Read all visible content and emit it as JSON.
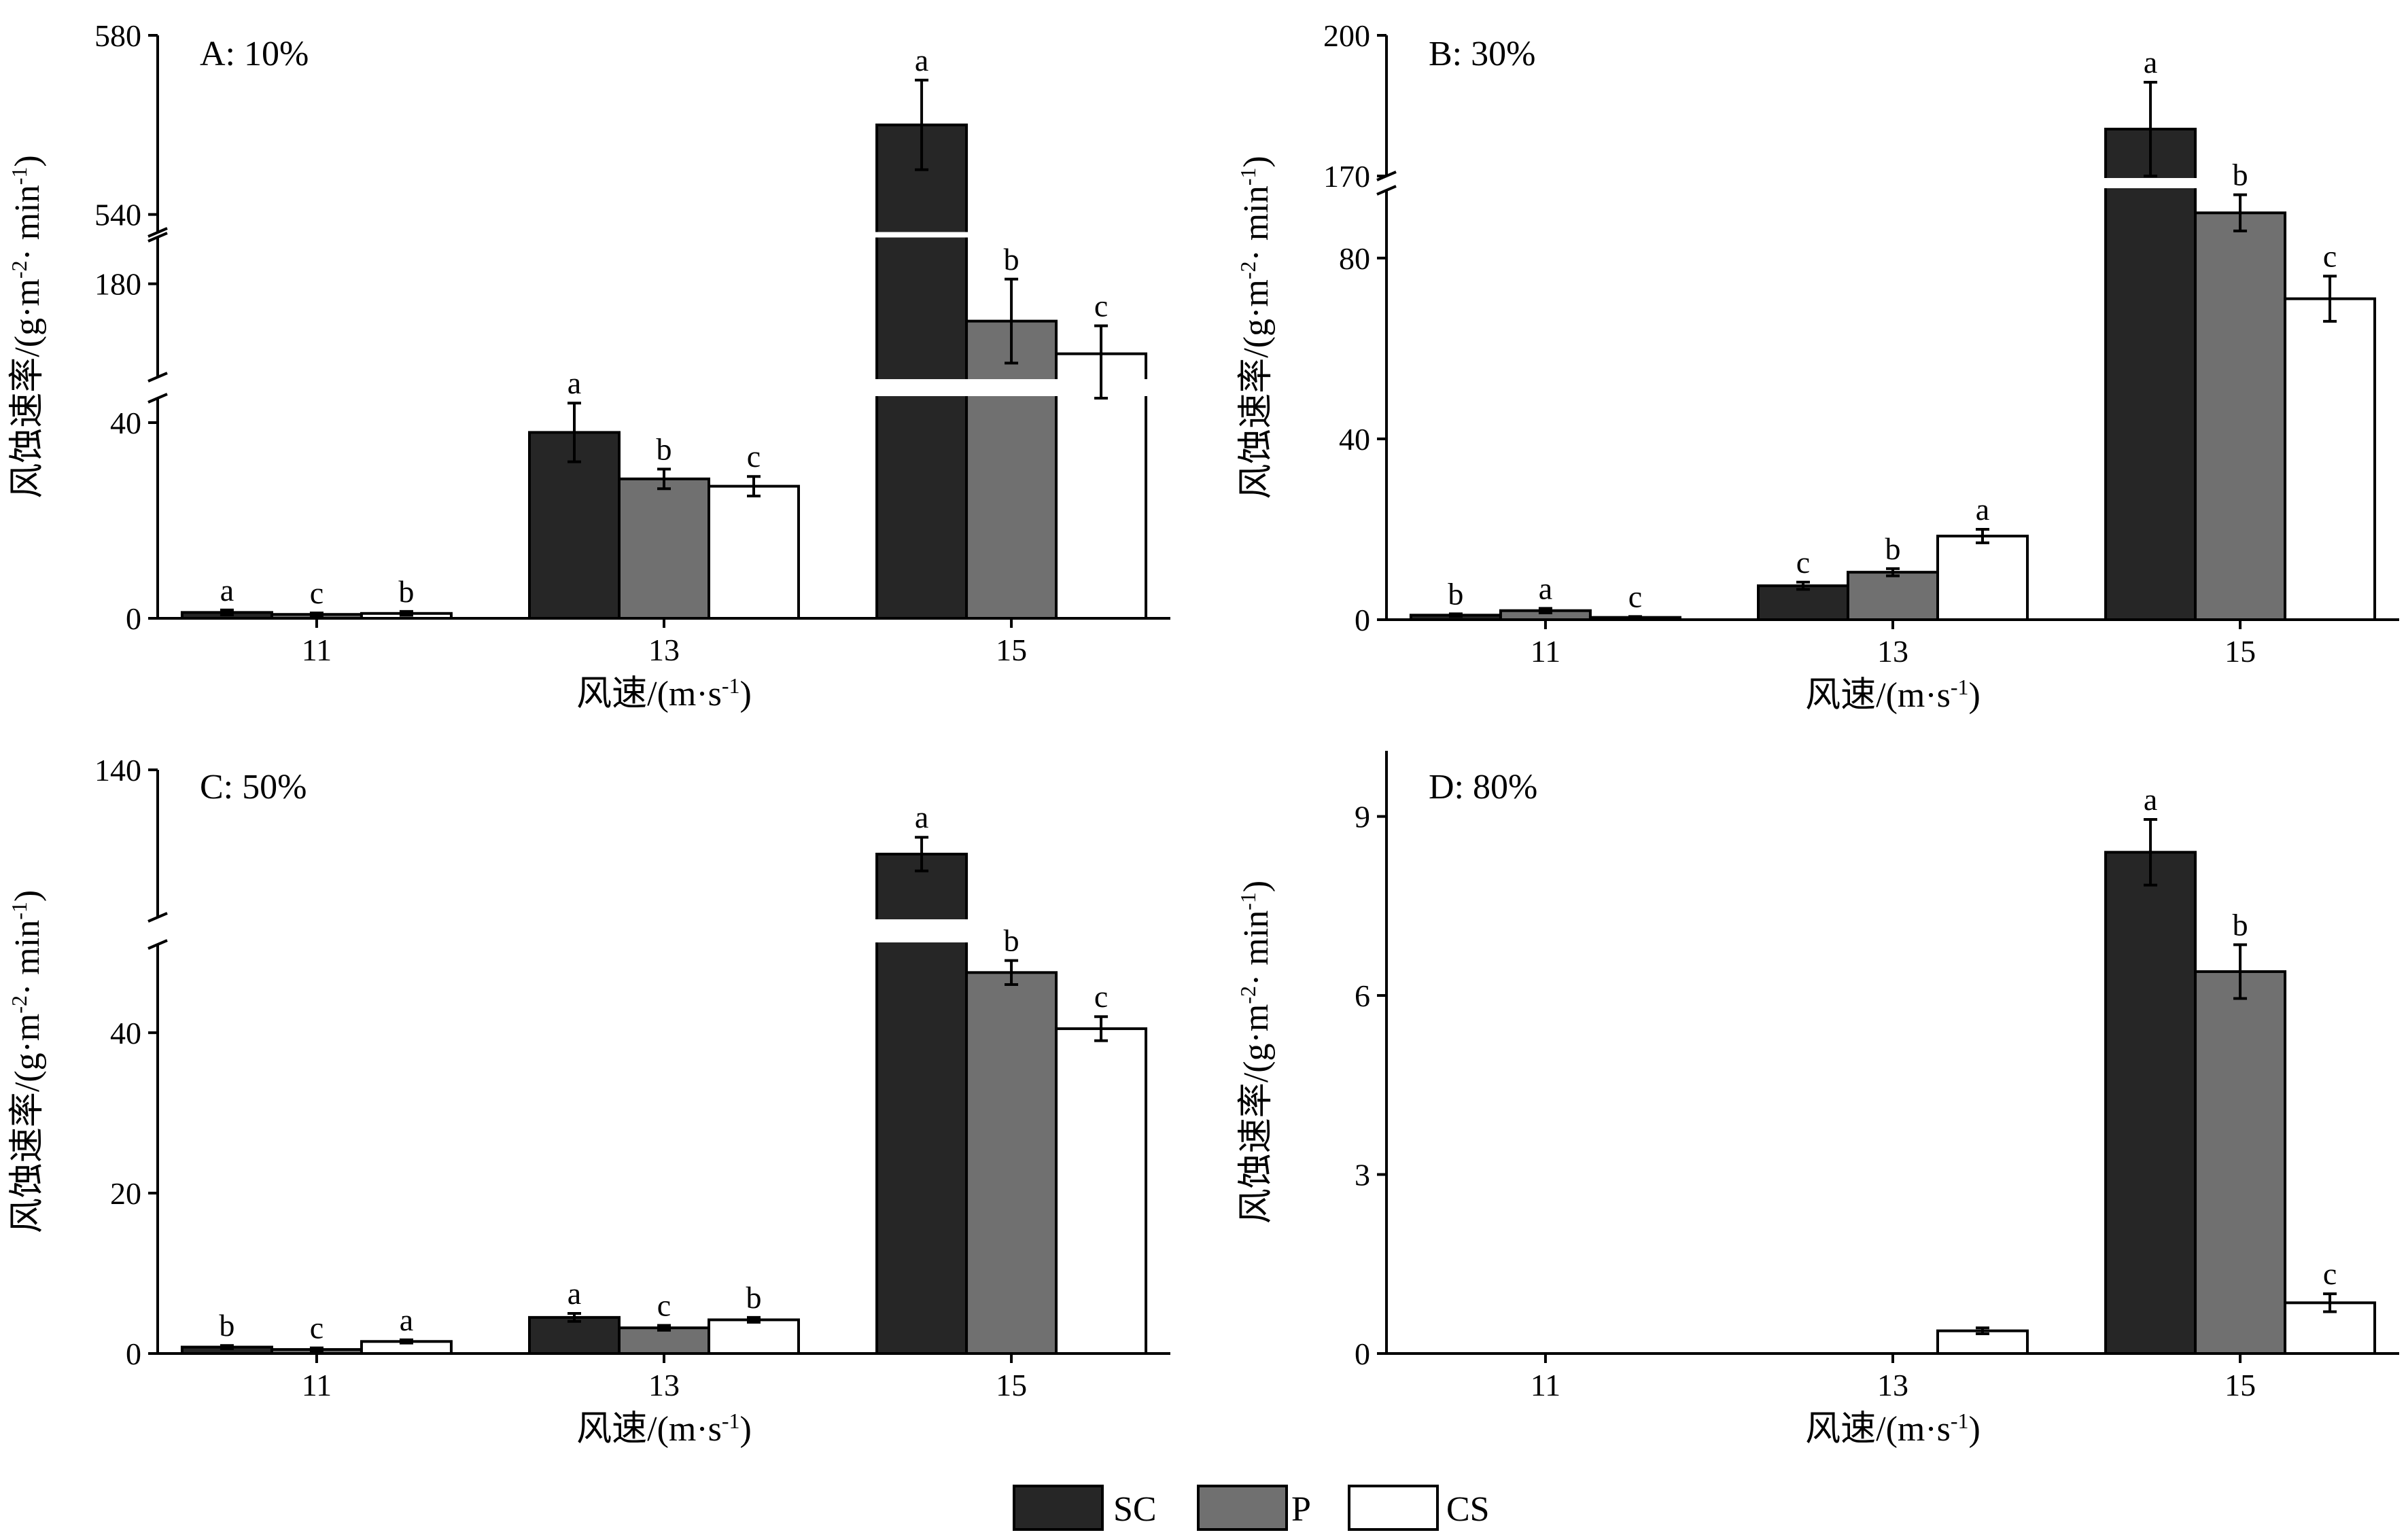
{
  "legend": {
    "items": [
      {
        "name": "SC",
        "color": "#262626"
      },
      {
        "name": "P",
        "color": "#707070"
      },
      {
        "name": "CS",
        "color": "#ffffff"
      }
    ]
  },
  "chart_data": [
    {
      "type": "bar",
      "panel": "A: 10%",
      "xlabel": "风速/(m·s",
      "xlabel_sup": "-1",
      "xlabel_close": ")",
      "ylabel": "风蚀速率/(g·m",
      "ylabel_sup1": "-2",
      "ylabel_mid": "· min",
      "ylabel_sup2": "-1",
      "ylabel_close": ")",
      "categories": [
        "11",
        "13",
        "15"
      ],
      "yticks": [
        "0",
        "40",
        "180",
        "540",
        "580"
      ],
      "axis_breaks": [
        [
          45,
          160
        ],
        [
          190,
          536
        ]
      ],
      "series": [
        {
          "name": "SC",
          "values": [
            1.2,
            38,
            560
          ],
          "errors": [
            0.5,
            6,
            10
          ],
          "letters": [
            "a",
            "a",
            "a"
          ]
        },
        {
          "name": "P",
          "values": [
            0.8,
            28.5,
            172
          ],
          "errors": [
            0.3,
            2,
            9
          ],
          "letters": [
            "c",
            "b",
            "b"
          ]
        },
        {
          "name": "CS",
          "values": [
            1.0,
            27,
            165
          ],
          "errors": [
            0.4,
            2,
            6
          ],
          "letters": [
            "b",
            "c",
            "c"
          ]
        }
      ]
    },
    {
      "type": "bar",
      "panel": "B: 30%",
      "xlabel": "风速/(m·s",
      "xlabel_sup": "-1",
      "xlabel_close": ")",
      "ylabel": "风蚀速率/(g·m",
      "ylabel_sup1": "-2",
      "ylabel_mid": "· min",
      "ylabel_sup2": "-1",
      "ylabel_close": ")",
      "categories": [
        "11",
        "13",
        "15"
      ],
      "yticks": [
        "0",
        "40",
        "80",
        "170",
        "200"
      ],
      "axis_breaks": [
        [
          95,
          170
        ]
      ],
      "series": [
        {
          "name": "SC",
          "values": [
            1.0,
            7.5,
            180
          ],
          "errors": [
            0.3,
            0.8,
            10
          ],
          "letters": [
            "b",
            "c",
            "a"
          ]
        },
        {
          "name": "P",
          "values": [
            2.0,
            10.5,
            90
          ],
          "errors": [
            0.5,
            0.8,
            4
          ],
          "letters": [
            "a",
            "b",
            "b"
          ]
        },
        {
          "name": "CS",
          "values": [
            0.5,
            18.5,
            71
          ],
          "errors": [
            0.2,
            1.5,
            5
          ],
          "letters": [
            "c",
            "a",
            "c"
          ]
        }
      ]
    },
    {
      "type": "bar",
      "panel": "C: 50%",
      "xlabel": "风速/(m·s",
      "xlabel_sup": "-1",
      "xlabel_close": ")",
      "ylabel": "风蚀速率/(g·m",
      "ylabel_sup1": "-2",
      "ylabel_mid": "· min",
      "ylabel_sup2": "-1",
      "ylabel_close": ")",
      "categories": [
        "11",
        "13",
        "15"
      ],
      "yticks": [
        "0",
        "20",
        "40",
        "140"
      ],
      "axis_breaks": [
        [
          51,
          70
        ]
      ],
      "series": [
        {
          "name": "SC",
          "values": [
            0.8,
            4.5,
            100
          ],
          "errors": [
            0.2,
            0.5,
            8
          ],
          "letters": [
            "b",
            "a",
            "a"
          ]
        },
        {
          "name": "P",
          "values": [
            0.5,
            3.2,
            47.5
          ],
          "errors": [
            0.2,
            0.3,
            1.5
          ],
          "letters": [
            "c",
            "c",
            "b"
          ]
        },
        {
          "name": "CS",
          "values": [
            1.5,
            4.2,
            40.5
          ],
          "errors": [
            0.2,
            0.3,
            1.5
          ],
          "letters": [
            "a",
            "b",
            "c"
          ]
        }
      ]
    },
    {
      "type": "bar",
      "panel": "D: 80%",
      "xlabel": "风速/(m·s",
      "xlabel_sup": "-1",
      "xlabel_close": ")",
      "ylabel": "风蚀速率/(g·m",
      "ylabel_sup1": "-2",
      "ylabel_mid": "· min",
      "ylabel_sup2": "-1",
      "ylabel_close": ")",
      "categories": [
        "11",
        "13",
        "15"
      ],
      "yticks": [
        "0",
        "3",
        "6",
        "9"
      ],
      "axis_breaks": [],
      "series": [
        {
          "name": "SC",
          "values": [
            0,
            0,
            8.4
          ],
          "errors": [
            0,
            0,
            0.55
          ],
          "letters": [
            "",
            "",
            "a"
          ]
        },
        {
          "name": "P",
          "values": [
            0,
            0,
            6.4
          ],
          "errors": [
            0,
            0,
            0.45
          ],
          "letters": [
            "",
            "",
            "b"
          ]
        },
        {
          "name": "CS",
          "values": [
            0,
            0.38,
            0.85
          ],
          "errors": [
            0,
            0.05,
            0.15
          ],
          "letters": [
            "",
            "",
            "c"
          ]
        }
      ]
    }
  ]
}
